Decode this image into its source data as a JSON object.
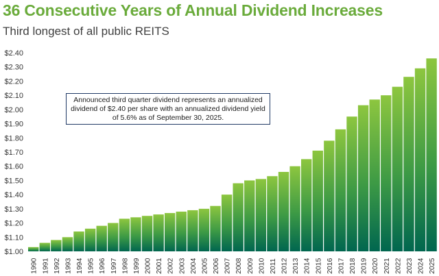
{
  "header": {
    "title": "36 Consecutive Years of Annual Dividend Increases",
    "subtitle": "Third longest of all public REITS"
  },
  "annotation": "Announced third quarter dividend represents an annualized dividend of $2.40 per share with an annualized dividend yield of 5.6% as of September 30, 2025.",
  "colors": {
    "title": "#6aab3b",
    "bar_top": "#8dc63f",
    "bar_bottom": "#00664f",
    "annotation_border": "#1f3864"
  },
  "chart_data": {
    "type": "bar",
    "title": "36 Consecutive Years of Annual Dividend Increases",
    "categories": [
      "1990",
      "1991",
      "1992",
      "1993",
      "1994",
      "1995",
      "1996",
      "1997",
      "1998",
      "1999",
      "2000",
      "2001",
      "2002",
      "2003",
      "2004",
      "2005",
      "2006",
      "2007",
      "2008",
      "2009",
      "2010",
      "2011",
      "2012",
      "2013",
      "2014",
      "2015",
      "2016",
      "2017",
      "2018",
      "2019",
      "2020",
      "2021",
      "2022",
      "2023",
      "2024",
      "2025"
    ],
    "values": [
      1.03,
      1.06,
      1.08,
      1.1,
      1.14,
      1.16,
      1.18,
      1.2,
      1.23,
      1.24,
      1.25,
      1.26,
      1.27,
      1.28,
      1.29,
      1.3,
      1.32,
      1.4,
      1.48,
      1.5,
      1.51,
      1.53,
      1.56,
      1.6,
      1.65,
      1.71,
      1.78,
      1.86,
      1.95,
      2.03,
      2.07,
      2.1,
      2.16,
      2.23,
      2.29,
      2.36
    ],
    "ylim": [
      1.0,
      2.4
    ],
    "yticks": [
      "$1.00",
      "$1.10",
      "$1.20",
      "$1.30",
      "$1.40",
      "$1.50",
      "$1.60",
      "$1.70",
      "$1.80",
      "$1.90",
      "$2.00",
      "$2.10",
      "$2.20",
      "$2.30",
      "$2.40"
    ],
    "grid": false,
    "xlabel": "",
    "ylabel": ""
  }
}
